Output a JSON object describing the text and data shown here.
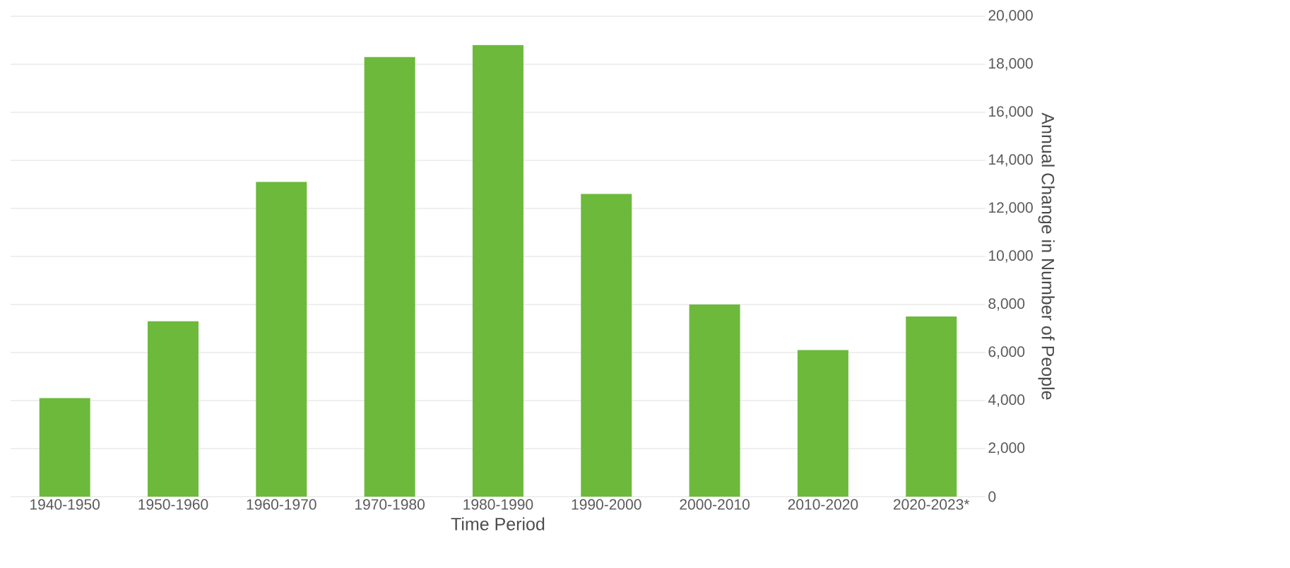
{
  "chart_data": {
    "type": "bar",
    "categories": [
      "1940-1950",
      "1950-1960",
      "1960-1970",
      "1970-1980",
      "1980-1990",
      "1990-2000",
      "2000-2010",
      "2010-2020",
      "2020-2023*"
    ],
    "values": [
      4100,
      7300,
      13100,
      18300,
      18800,
      12600,
      8000,
      6100,
      7500
    ],
    "color": "#6db93c",
    "xlabel": "Time Period",
    "ylabel": "Annual Change in Number of People",
    "ylim": [
      0,
      20000
    ],
    "yticks": [
      {
        "value": 0,
        "label": "0"
      },
      {
        "value": 2000,
        "label": "2,000"
      },
      {
        "value": 4000,
        "label": "4,000"
      },
      {
        "value": 6000,
        "label": "6,000"
      },
      {
        "value": 8000,
        "label": "8,000"
      },
      {
        "value": 10000,
        "label": "10,000"
      },
      {
        "value": 12000,
        "label": "12,000"
      },
      {
        "value": 14000,
        "label": "14,000"
      },
      {
        "value": 16000,
        "label": "16,000"
      },
      {
        "value": 18000,
        "label": "18,000"
      },
      {
        "value": 20000,
        "label": "20,000"
      }
    ],
    "grid": "y"
  }
}
